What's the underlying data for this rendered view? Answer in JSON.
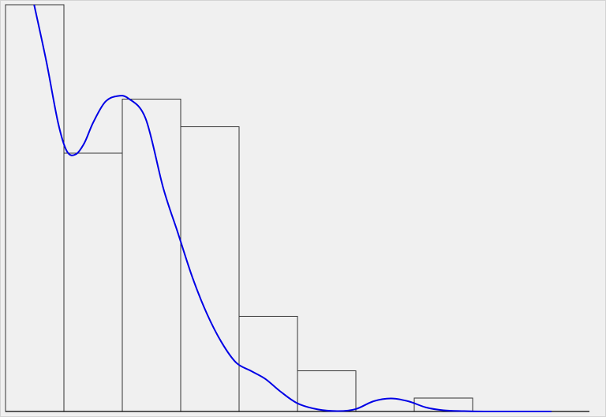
{
  "chart_data": {
    "type": "bar",
    "subtype": "histogram-with-density-curve",
    "title": "",
    "xlabel": "",
    "ylabel": "",
    "grid": false,
    "legend": "none",
    "ylim": [
      0,
      1
    ],
    "bins": [
      {
        "x0": 0,
        "x1": 1,
        "value": 1.0
      },
      {
        "x0": 1,
        "x1": 2,
        "value": 0.635
      },
      {
        "x0": 2,
        "x1": 3,
        "value": 0.768
      },
      {
        "x0": 3,
        "x1": 4,
        "value": 0.7
      },
      {
        "x0": 4,
        "x1": 5,
        "value": 0.234
      },
      {
        "x0": 5,
        "x1": 6,
        "value": 0.1
      },
      {
        "x0": 6,
        "x1": 7,
        "value": 0.0
      },
      {
        "x0": 7,
        "x1": 8,
        "value": 0.033
      },
      {
        "x0": 8,
        "x1": 9,
        "value": 0.0
      },
      {
        "x0": 9,
        "x1": 10,
        "value": 0.0
      }
    ],
    "density_curve": {
      "color": "#0000e6",
      "x": [
        0.49,
        0.7,
        0.9,
        1.05,
        1.2,
        1.35,
        1.5,
        1.7,
        1.9,
        2.1,
        2.4,
        2.7,
        2.95,
        3.2,
        3.45,
        3.7,
        3.95,
        4.2,
        4.45,
        4.7,
        5.0,
        5.35,
        5.7,
        6.0,
        6.3,
        6.6,
        6.9,
        7.2,
        7.5,
        7.85,
        8.2,
        8.6,
        9.0,
        9.35
      ],
      "y": [
        1.0,
        0.86,
        0.71,
        0.64,
        0.632,
        0.66,
        0.71,
        0.76,
        0.775,
        0.77,
        0.72,
        0.55,
        0.44,
        0.33,
        0.24,
        0.17,
        0.12,
        0.1,
        0.08,
        0.05,
        0.02,
        0.005,
        0.001,
        0.006,
        0.025,
        0.032,
        0.025,
        0.01,
        0.003,
        0.001,
        0.0,
        0.0,
        0.0,
        0.0
      ]
    },
    "colors": {
      "bar_fill": "none",
      "bar_stroke": "#333333",
      "axis": "#000000",
      "background": "#f0f0f0"
    }
  }
}
